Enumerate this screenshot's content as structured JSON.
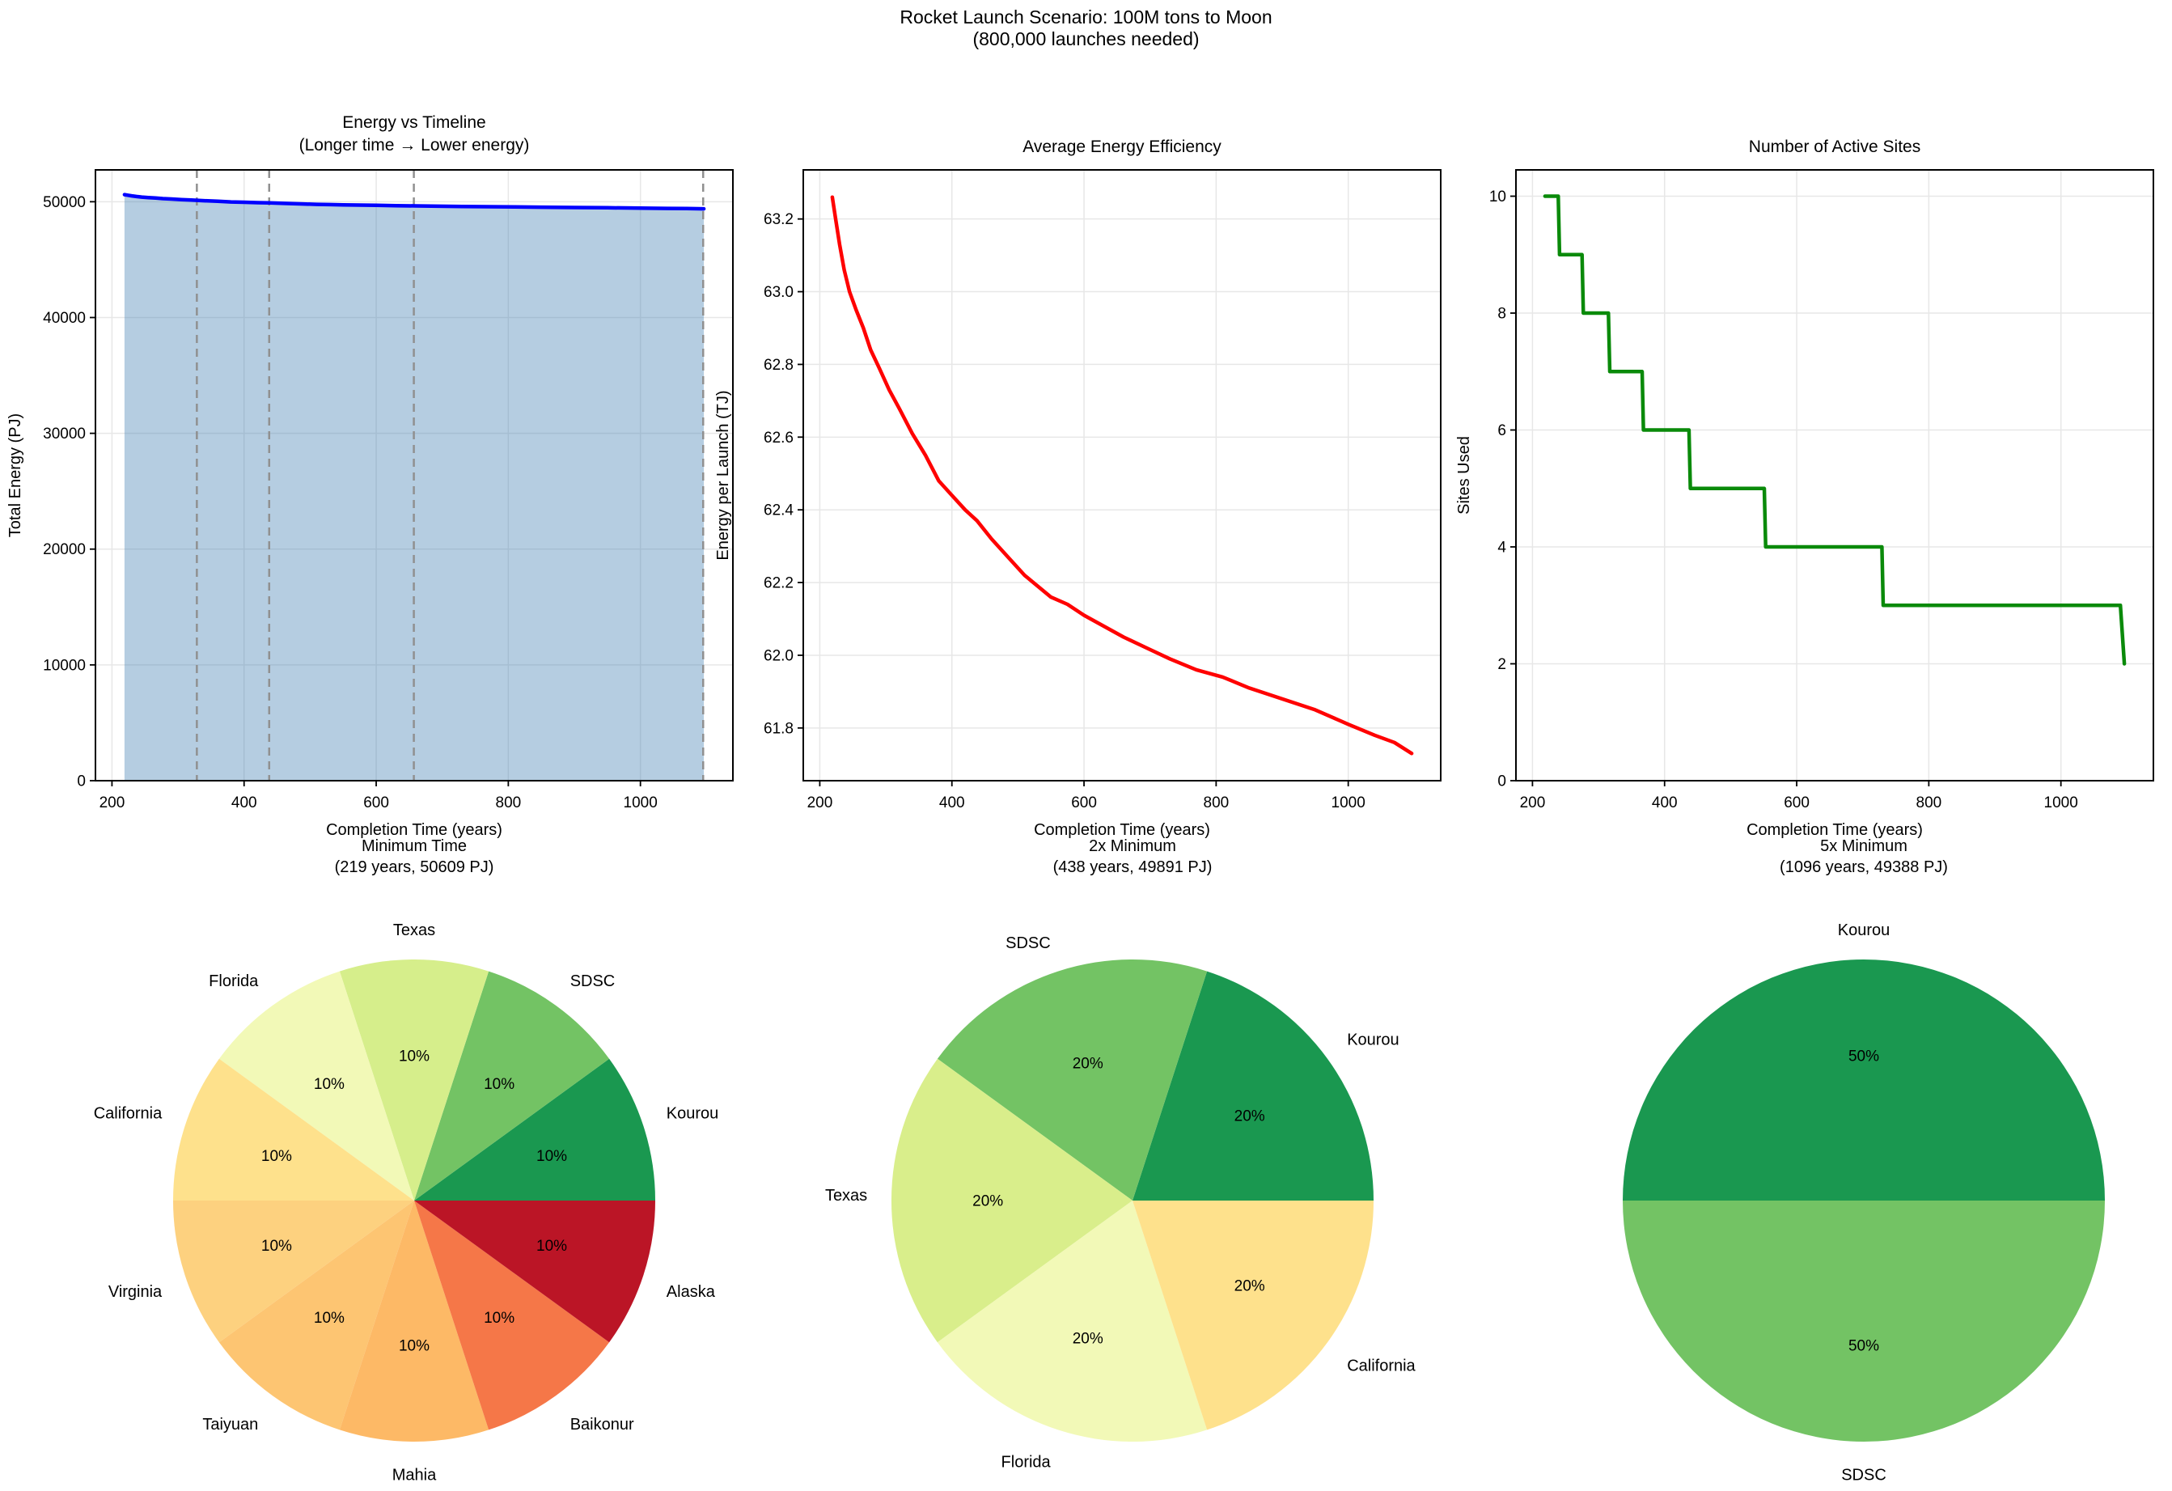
{
  "figure": {
    "title_line1": "Rocket Launch Scenario: 100M tons to Moon",
    "title_line2": "(800,000 launches needed)",
    "background": "#ffffff",
    "text_color": "#000000",
    "grid_color": "#e7e7e7",
    "spine_color": "#000000"
  },
  "chart_data": [
    {
      "name": "energy-vs-timeline",
      "type": "area",
      "title_lines": [
        "Energy vs Timeline",
        "(Longer time → Lower energy)"
      ],
      "xlabel": "Completion Time (years)",
      "ylabel": "Total Energy (PJ)",
      "xlim": [
        175,
        1140
      ],
      "ylim": [
        0,
        52750
      ],
      "xticks": [
        200,
        400,
        600,
        800,
        1000
      ],
      "xtick_labels": [
        "200",
        "400",
        "600",
        "800",
        "1000"
      ],
      "yticks": [
        0,
        10000,
        20000,
        30000,
        40000,
        50000
      ],
      "ytick_labels": [
        "0",
        "10000",
        "20000",
        "30000",
        "40000",
        "50000"
      ],
      "grid": true,
      "line_color": "#0000ff",
      "fill_color": "rgba(70,130,180,0.4)",
      "dashed_vlines": [
        328.5,
        438,
        657,
        1095
      ],
      "dashed_color": "#909090",
      "points": [
        [
          219,
          50609
        ],
        [
          224,
          50560
        ],
        [
          230,
          50504
        ],
        [
          237,
          50448
        ],
        [
          245,
          50400
        ],
        [
          255,
          50360
        ],
        [
          266,
          50320
        ],
        [
          277,
          50272
        ],
        [
          290,
          50232
        ],
        [
          305,
          50184
        ],
        [
          320,
          50144
        ],
        [
          340,
          50088
        ],
        [
          360,
          50040
        ],
        [
          380,
          49984
        ],
        [
          400,
          49952
        ],
        [
          420,
          49920
        ],
        [
          438,
          49896
        ],
        [
          460,
          49856
        ],
        [
          485,
          49816
        ],
        [
          510,
          49776
        ],
        [
          530,
          49752
        ],
        [
          550,
          49728
        ],
        [
          575,
          49712
        ],
        [
          600,
          49688
        ],
        [
          630,
          49664
        ],
        [
          660,
          49640
        ],
        [
          695,
          49616
        ],
        [
          730,
          49592
        ],
        [
          770,
          49568
        ],
        [
          810,
          49552
        ],
        [
          850,
          49528
        ],
        [
          900,
          49504
        ],
        [
          950,
          49480
        ],
        [
          1000,
          49448
        ],
        [
          1040,
          49424
        ],
        [
          1070,
          49408
        ],
        [
          1096,
          49388
        ]
      ]
    },
    {
      "name": "average-energy-efficiency",
      "type": "line",
      "title_lines": [
        "Average Energy Efficiency"
      ],
      "xlabel": "Completion Time (years)",
      "ylabel": "Energy per Launch (TJ)",
      "xlim": [
        175,
        1140
      ],
      "ylim": [
        61.655,
        63.335
      ],
      "xticks": [
        200,
        400,
        600,
        800,
        1000
      ],
      "xtick_labels": [
        "200",
        "400",
        "600",
        "800",
        "1000"
      ],
      "yticks": [
        61.8,
        62.0,
        62.2,
        62.4,
        62.6,
        62.8,
        63.0,
        63.2
      ],
      "ytick_labels": [
        "61.8",
        "62.0",
        "62.2",
        "62.4",
        "62.6",
        "62.8",
        "63.0",
        "63.2"
      ],
      "grid": true,
      "line_color": "#ff0000",
      "points": [
        [
          219,
          63.26
        ],
        [
          224,
          63.2
        ],
        [
          230,
          63.13
        ],
        [
          237,
          63.06
        ],
        [
          245,
          63.0
        ],
        [
          255,
          62.95
        ],
        [
          266,
          62.9
        ],
        [
          277,
          62.84
        ],
        [
          290,
          62.79
        ],
        [
          305,
          62.73
        ],
        [
          320,
          62.68
        ],
        [
          340,
          62.61
        ],
        [
          360,
          62.55
        ],
        [
          380,
          62.48
        ],
        [
          400,
          62.44
        ],
        [
          420,
          62.4
        ],
        [
          438,
          62.37
        ],
        [
          460,
          62.32
        ],
        [
          485,
          62.27
        ],
        [
          510,
          62.22
        ],
        [
          530,
          62.19
        ],
        [
          550,
          62.16
        ],
        [
          575,
          62.14
        ],
        [
          600,
          62.11
        ],
        [
          630,
          62.08
        ],
        [
          660,
          62.05
        ],
        [
          695,
          62.02
        ],
        [
          730,
          61.99
        ],
        [
          770,
          61.96
        ],
        [
          810,
          61.94
        ],
        [
          850,
          61.91
        ],
        [
          900,
          61.88
        ],
        [
          950,
          61.85
        ],
        [
          1000,
          61.81
        ],
        [
          1040,
          61.78
        ],
        [
          1070,
          61.76
        ],
        [
          1096,
          61.73
        ]
      ]
    },
    {
      "name": "number-of-active-sites",
      "type": "step",
      "title_lines": [
        "Number of Active Sites"
      ],
      "xlabel": "Completion Time (years)",
      "ylabel": "Sites Used",
      "xlim": [
        175,
        1140
      ],
      "ylim": [
        0,
        10.45
      ],
      "xticks": [
        200,
        400,
        600,
        800,
        1000
      ],
      "xtick_labels": [
        "200",
        "400",
        "600",
        "800",
        "1000"
      ],
      "yticks": [
        0,
        2,
        4,
        6,
        8,
        10
      ],
      "ytick_labels": [
        "0",
        "2",
        "4",
        "6",
        "8",
        "10"
      ],
      "grid": true,
      "line_color": "#0a8a0a",
      "points": [
        [
          219,
          10
        ],
        [
          239,
          10
        ],
        [
          241,
          9
        ],
        [
          275,
          9
        ],
        [
          277,
          8
        ],
        [
          315,
          8
        ],
        [
          317,
          7
        ],
        [
          366,
          7
        ],
        [
          368,
          6
        ],
        [
          437,
          6
        ],
        [
          439,
          5
        ],
        [
          551,
          5
        ],
        [
          553,
          4
        ],
        [
          729,
          4
        ],
        [
          731,
          3
        ],
        [
          1090,
          3
        ],
        [
          1096,
          2
        ]
      ]
    },
    {
      "name": "pie-minimum-time",
      "type": "pie",
      "title_lines": [
        "Minimum Time",
        "(219 years, 50609 PJ)"
      ],
      "slices": [
        {
          "label": "Kourou",
          "value": 10,
          "pct_label": "10%",
          "color": "#1a9850"
        },
        {
          "label": "SDSC",
          "value": 10,
          "pct_label": "10%",
          "color": "#73c364"
        },
        {
          "label": "Texas",
          "value": 10,
          "pct_label": "10%",
          "color": "#d6ee8b"
        },
        {
          "label": "Florida",
          "value": 10,
          "pct_label": "10%",
          "color": "#f2f9b7"
        },
        {
          "label": "California",
          "value": 10,
          "pct_label": "10%",
          "color": "#fee18c"
        },
        {
          "label": "Virginia",
          "value": 10,
          "pct_label": "10%",
          "color": "#fdd17f"
        },
        {
          "label": "Taiyuan",
          "value": 10,
          "pct_label": "10%",
          "color": "#fdc572"
        },
        {
          "label": "Mahia",
          "value": 10,
          "pct_label": "10%",
          "color": "#fdb966"
        },
        {
          "label": "Baikonur",
          "value": 10,
          "pct_label": "10%",
          "color": "#f57748"
        },
        {
          "label": "Alaska",
          "value": 10,
          "pct_label": "10%",
          "color": "#bb1526"
        }
      ]
    },
    {
      "name": "pie-2x-minimum",
      "type": "pie",
      "title_lines": [
        "2x Minimum",
        "(438 years, 49891 PJ)"
      ],
      "slices": [
        {
          "label": "Kourou",
          "value": 20,
          "pct_label": "20%",
          "color": "#1a9850"
        },
        {
          "label": "SDSC",
          "value": 20,
          "pct_label": "20%",
          "color": "#73c364"
        },
        {
          "label": "Texas",
          "value": 20,
          "pct_label": "20%",
          "color": "#d9ee8b"
        },
        {
          "label": "Florida",
          "value": 20,
          "pct_label": "20%",
          "color": "#f2f9b7"
        },
        {
          "label": "California",
          "value": 20,
          "pct_label": "20%",
          "color": "#fee18c"
        }
      ]
    },
    {
      "name": "pie-5x-minimum",
      "type": "pie",
      "title_lines": [
        "5x Minimum",
        "(1096 years, 49388 PJ)"
      ],
      "slices": [
        {
          "label": "Kourou",
          "value": 50,
          "pct_label": "50%",
          "color": "#1a9850"
        },
        {
          "label": "SDSC",
          "value": 50,
          "pct_label": "50%",
          "color": "#73c364"
        }
      ]
    }
  ]
}
